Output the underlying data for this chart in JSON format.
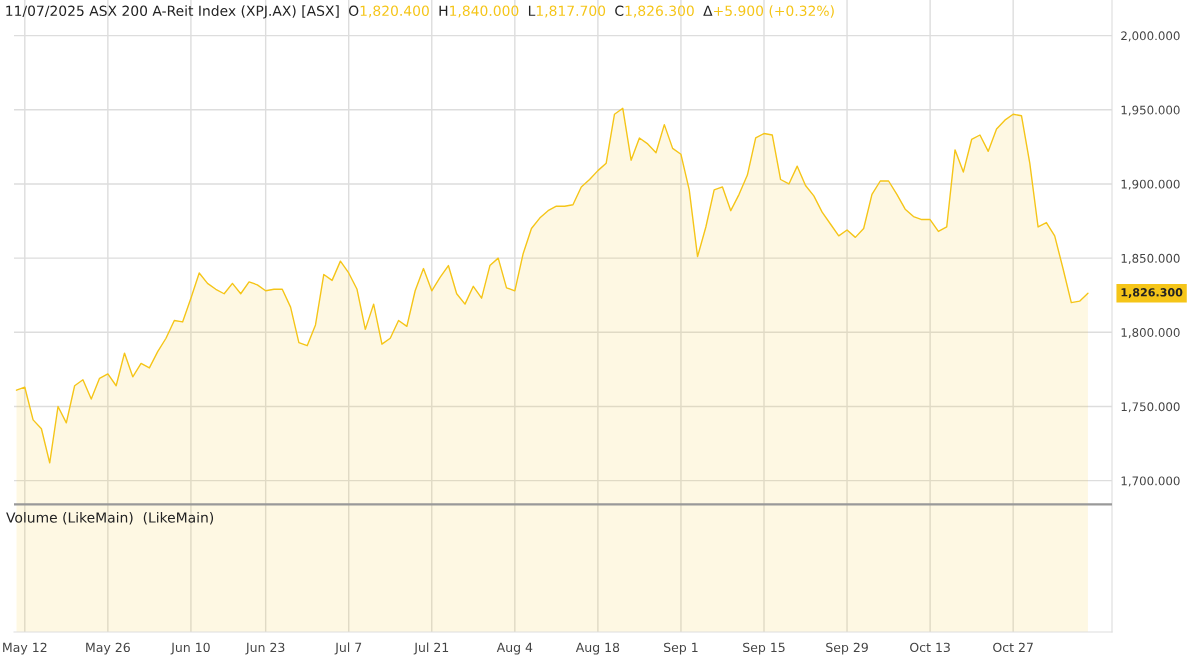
{
  "chart_data": {
    "type": "area",
    "title": "11/07/2025 ASX 200 A-Reit Index (XPJ.AX) [ASX]",
    "categories": [
      null,
      "May 12",
      null,
      null,
      null,
      null,
      null,
      null,
      null,
      null,
      null,
      "May 26",
      null,
      null,
      null,
      null,
      null,
      null,
      null,
      null,
      null,
      "Jun 10",
      null,
      null,
      null,
      null,
      null,
      null,
      null,
      null,
      "Jun 23",
      null,
      null,
      null,
      null,
      null,
      null,
      null,
      null,
      null,
      "Jul 7",
      null,
      null,
      null,
      null,
      null,
      null,
      null,
      null,
      null,
      "Jul 21",
      null,
      null,
      null,
      null,
      null,
      null,
      null,
      null,
      null,
      "Aug 4",
      null,
      null,
      null,
      null,
      null,
      null,
      null,
      null,
      null,
      "Aug 18",
      null,
      null,
      null,
      null,
      null,
      null,
      null,
      null,
      null,
      "Sep 1",
      null,
      null,
      null,
      null,
      null,
      null,
      null,
      null,
      null,
      "Sep 15",
      null,
      null,
      null,
      null,
      null,
      null,
      null,
      null,
      null,
      "Sep 29",
      null,
      null,
      null,
      null,
      null,
      null,
      null,
      null,
      null,
      "Oct 13",
      null,
      null,
      null,
      null,
      null,
      null,
      null,
      null,
      null,
      "Oct 27",
      null,
      null,
      null,
      null,
      null,
      null,
      null,
      null,
      null
    ],
    "series": [
      {
        "color": "#f5c518",
        "values": [
          1761,
          1763,
          1741,
          1735,
          1712,
          1750,
          1739,
          1764,
          1768,
          1755,
          1769,
          1772,
          1764,
          1786,
          1770,
          1779,
          1776,
          1787,
          1796,
          1808,
          1807,
          1823,
          1840,
          1833,
          1829,
          1826,
          1833,
          1826,
          1834,
          1832,
          1828,
          1829,
          1829,
          1817,
          1793,
          1791,
          1805,
          1839,
          1835,
          1848,
          1840,
          1829,
          1802,
          1819,
          1792,
          1796,
          1808,
          1804,
          1828,
          1843,
          1828,
          1837,
          1845,
          1826,
          1819,
          1831,
          1823,
          1845,
          1850,
          1830,
          1828,
          1853,
          1870,
          1877,
          1882,
          1885,
          1885,
          1886,
          1898,
          1903,
          1909,
          1914,
          1947,
          1951,
          1916,
          1931,
          1927,
          1921,
          1940,
          1924,
          1920,
          1896,
          1851,
          1871,
          1896,
          1898,
          1882,
          1893,
          1906,
          1931,
          1934,
          1933,
          1903,
          1900,
          1912,
          1899,
          1892,
          1881,
          1873,
          1865,
          1869,
          1864,
          1870,
          1893,
          1902,
          1902,
          1893,
          1883,
          1878,
          1876,
          1876,
          1868,
          1871,
          1923,
          1908,
          1930,
          1933,
          1922,
          1937,
          1943,
          1947,
          1946,
          1914,
          1871,
          1874,
          1865,
          1843,
          1820,
          1821,
          1826.3
        ]
      }
    ],
    "ylim": [
      1598,
      2024
    ],
    "ref_lines": [
      {
        "axis": "y",
        "value": 1684,
        "color": "#999999"
      }
    ],
    "yticks": [
      {
        "value": 1700,
        "label": "1,700.000"
      },
      {
        "value": 1750,
        "label": "1,750.000"
      },
      {
        "value": 1800,
        "label": "1,800.000"
      },
      {
        "value": 1850,
        "label": "1,850.000"
      },
      {
        "value": 1900,
        "label": "1,900.000"
      },
      {
        "value": 1950,
        "label": "1,950.000"
      },
      {
        "value": 2000,
        "label": "2,000.000"
      }
    ],
    "grid": true,
    "annotations": [
      "O",
      "1,820.400",
      "H",
      "1,840.000",
      "L",
      "1,817.700",
      "C",
      "1,826.300",
      "Δ",
      "+5.900 (+0.32%)",
      "Volume (LikeMain)  (LikeMain)",
      "1,826.300"
    ]
  }
}
